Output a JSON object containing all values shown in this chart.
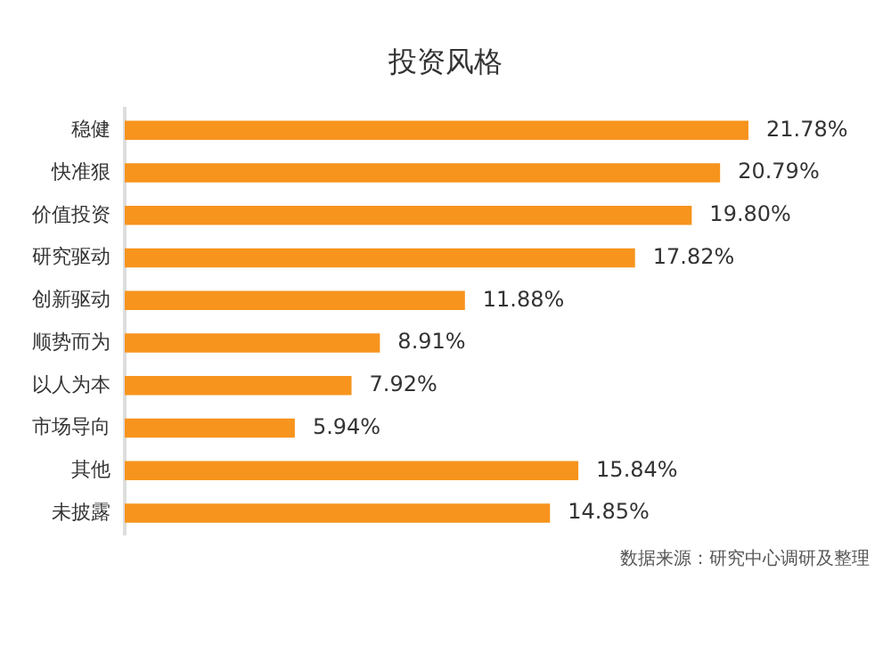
{
  "chart_data": {
    "type": "bar",
    "orientation": "horizontal",
    "title": "投资风格",
    "categories": [
      "稳健",
      "快准狠",
      "价值投资",
      "研究驱动",
      "创新驱动",
      "顺势而为",
      "以人为本",
      "市场导向",
      "其他",
      "未披露"
    ],
    "values": [
      21.78,
      20.79,
      19.8,
      17.82,
      11.88,
      8.91,
      7.92,
      5.94,
      15.84,
      14.85
    ],
    "value_labels": [
      "21.78%",
      "20.79%",
      "19.80%",
      "17.82%",
      "11.88%",
      "8.91%",
      "7.92%",
      "5.94%",
      "15.84%",
      "14.85%"
    ],
    "color": "#f7941d",
    "legend": false,
    "tick_labels": "y",
    "annotations": [
      "数据来源：研究中心调研及整理"
    ]
  }
}
